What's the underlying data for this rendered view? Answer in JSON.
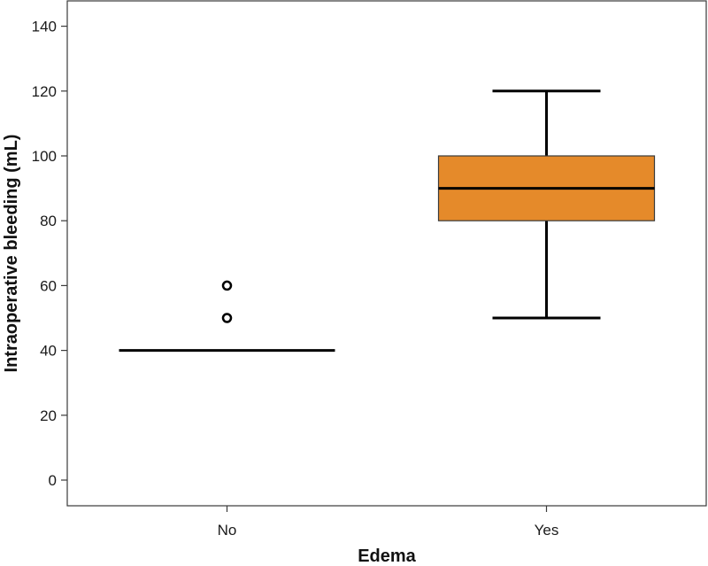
{
  "chart_data": {
    "type": "box",
    "xlabel": "Edema",
    "ylabel": "Intraoperative bleeding (mL)",
    "ylim": [
      -7,
      148
    ],
    "yticks": [
      0,
      20,
      40,
      60,
      80,
      100,
      120,
      140
    ],
    "categories": [
      "No",
      "Yes"
    ],
    "boxes": [
      {
        "category": "No",
        "min": 40,
        "q1": 40,
        "median": 40,
        "q3": 40,
        "max": 40,
        "outliers": [
          50,
          60
        ]
      },
      {
        "category": "Yes",
        "min": 50,
        "q1": 80,
        "median": 90,
        "q3": 100,
        "max": 120,
        "outliers": []
      }
    ],
    "colors": {
      "box_fill": "#e58a2a",
      "line": "#000000"
    },
    "grid": false
  }
}
